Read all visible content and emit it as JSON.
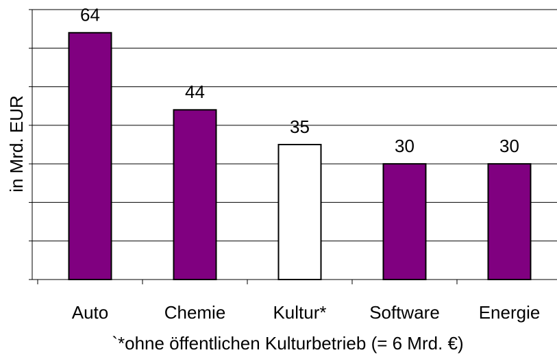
{
  "chart_data": {
    "type": "bar",
    "ylabel": "in Mrd. EUR",
    "categories": [
      "Auto",
      "Chemie",
      "Kultur*",
      "Software",
      "Energie"
    ],
    "values": [
      64,
      44,
      35,
      30,
      30
    ],
    "colors": [
      "#800080",
      "#800080",
      "#ffffff",
      "#800080",
      "#800080"
    ],
    "ylim": [
      0,
      70
    ],
    "yticks": [
      0,
      10,
      20,
      30,
      40,
      50,
      60,
      70
    ],
    "grid": true,
    "annotation": "`*ohne öffentlichen Kulturbetrieb (= 6 Mrd. €)"
  }
}
